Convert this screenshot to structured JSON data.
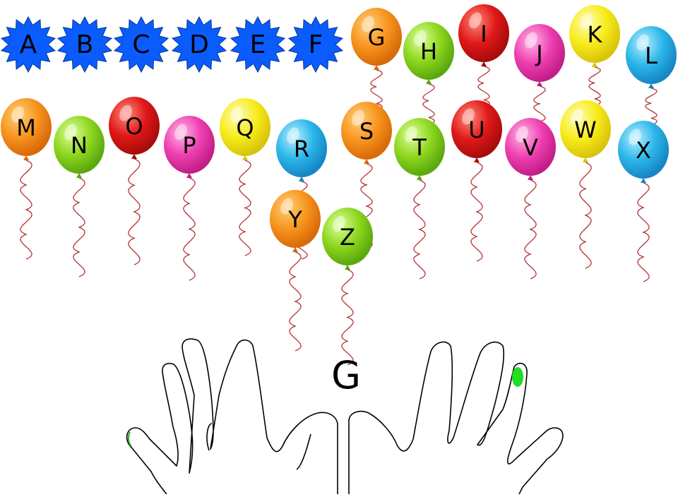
{
  "game": {
    "current_letter": "G",
    "letters": [
      {
        "letter": "A",
        "state": "popped"
      },
      {
        "letter": "B",
        "state": "popped"
      },
      {
        "letter": "C",
        "state": "popped"
      },
      {
        "letter": "D",
        "state": "popped"
      },
      {
        "letter": "E",
        "state": "popped"
      },
      {
        "letter": "F",
        "state": "popped"
      },
      {
        "letter": "G",
        "state": "balloon",
        "color": "orange"
      },
      {
        "letter": "H",
        "state": "balloon",
        "color": "green"
      },
      {
        "letter": "I",
        "state": "balloon",
        "color": "red"
      },
      {
        "letter": "J",
        "state": "balloon",
        "color": "pink"
      },
      {
        "letter": "K",
        "state": "balloon",
        "color": "yellow"
      },
      {
        "letter": "L",
        "state": "balloon",
        "color": "blue"
      },
      {
        "letter": "M",
        "state": "balloon",
        "color": "orange"
      },
      {
        "letter": "N",
        "state": "balloon",
        "color": "green"
      },
      {
        "letter": "O",
        "state": "balloon",
        "color": "red"
      },
      {
        "letter": "P",
        "state": "balloon",
        "color": "pink"
      },
      {
        "letter": "Q",
        "state": "balloon",
        "color": "yellow"
      },
      {
        "letter": "R",
        "state": "balloon",
        "color": "blue"
      },
      {
        "letter": "S",
        "state": "balloon",
        "color": "orange"
      },
      {
        "letter": "T",
        "state": "balloon",
        "color": "green"
      },
      {
        "letter": "U",
        "state": "balloon",
        "color": "red"
      },
      {
        "letter": "V",
        "state": "balloon",
        "color": "pink"
      },
      {
        "letter": "W",
        "state": "balloon",
        "color": "yellow"
      },
      {
        "letter": "X",
        "state": "balloon",
        "color": "blue"
      },
      {
        "letter": "Y",
        "state": "balloon",
        "color": "orange"
      },
      {
        "letter": "Z",
        "state": "balloon",
        "color": "green"
      }
    ],
    "finger_hint": {
      "hand": "right",
      "finger": "ring",
      "color": "#22dd22"
    }
  },
  "colors": {
    "popped": "#0a5cff",
    "orange": "#f7941d",
    "green": "#8ed61e",
    "red": "#e01818",
    "pink": "#ee3fb0",
    "yellow": "#f7ec1a",
    "blue": "#2bb6ea",
    "string": "#b3333a",
    "hand_outline": "#000000"
  }
}
